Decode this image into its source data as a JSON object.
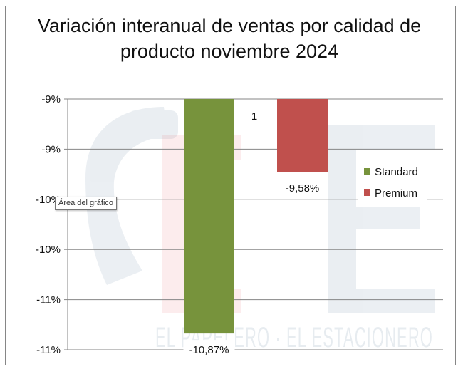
{
  "chart_data": {
    "type": "bar",
    "title": "Variación interanual de ventas por calidad de producto noviembre 2024",
    "categories": [
      "1"
    ],
    "series": [
      {
        "name": "Standard",
        "values": [
          -10.87
        ],
        "data_labels": [
          "-10,87%"
        ],
        "color": "#77933c"
      },
      {
        "name": "Premium",
        "values": [
          -9.58
        ],
        "data_labels": [
          "-9,58%"
        ],
        "color": "#c0504d"
      }
    ],
    "ytick_labels": [
      "-9%",
      "-9%",
      "-10%",
      "-10%",
      "-11%",
      "-11%"
    ],
    "ylim": [
      -11.0,
      -9.0
    ],
    "y_reversed": true,
    "grid": true,
    "legend_position": "right"
  },
  "tooltip": {
    "text": "Área del gráfico"
  },
  "watermark": {
    "text": "EL PAPELERO · EL ESTACIONERO",
    "brand_colors": [
      "#1f4e79",
      "#e63946"
    ]
  }
}
